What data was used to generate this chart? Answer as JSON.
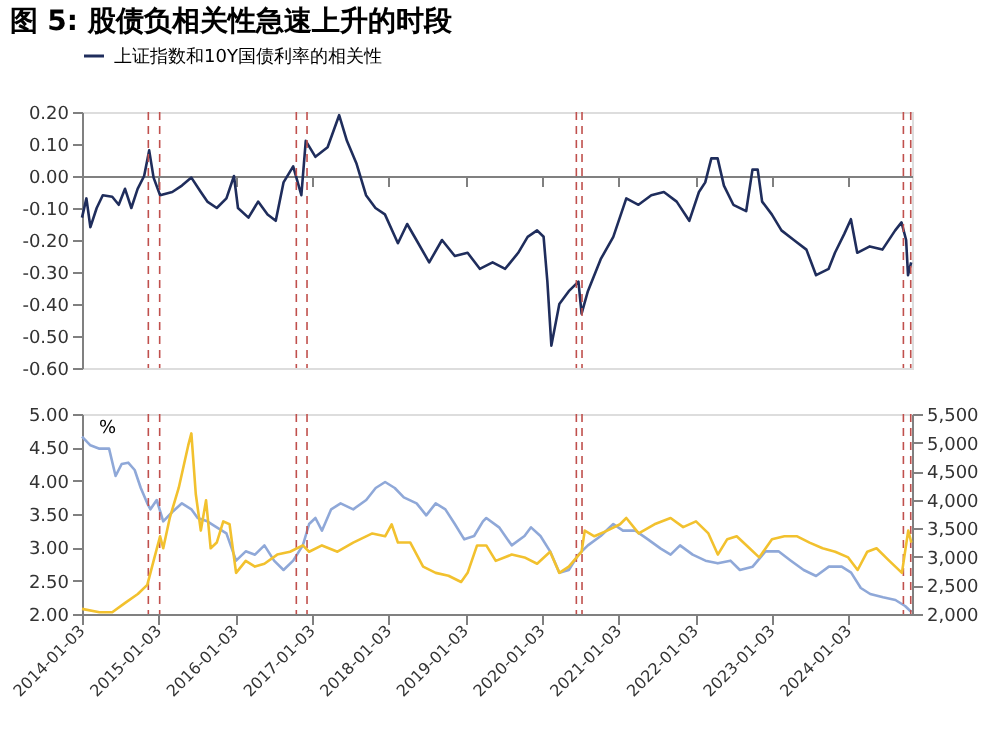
{
  "chart_data": [
    {
      "type": "line",
      "title": "图 5: 股债负相关性急速上升的时段",
      "legend": "top",
      "tick_labels": "y",
      "grid": false,
      "xlim": [
        "2014-01-03",
        "2024-10-31"
      ],
      "xticks": [
        {
          "value": "2014-01-03",
          "label": null
        },
        {
          "value": "2015-01-03",
          "label": null
        },
        {
          "value": "2016-01-03",
          "label": null
        },
        {
          "value": "2017-01-03",
          "label": null
        },
        {
          "value": "2018-01-03",
          "label": null
        },
        {
          "value": "2019-01-03",
          "label": null
        },
        {
          "value": "2020-01-03",
          "label": null
        },
        {
          "value": "2021-01-03",
          "label": null
        },
        {
          "value": "2022-01-03",
          "label": null
        },
        {
          "value": "2023-01-03",
          "label": null
        },
        {
          "value": "2024-01-03",
          "label": null
        }
      ],
      "ylim": [
        -0.6,
        0.2
      ],
      "yticks": [
        {
          "value": -0.6,
          "label": "-0.60"
        },
        {
          "value": -0.5,
          "label": "-0.50"
        },
        {
          "value": -0.4,
          "label": "-0.40"
        },
        {
          "value": -0.3,
          "label": "-0.30"
        },
        {
          "value": -0.2,
          "label": "-0.20"
        },
        {
          "value": -0.1,
          "label": "-0.10"
        },
        {
          "value": 0,
          "label": "0.00"
        },
        {
          "value": 0.1,
          "label": "0.10"
        },
        {
          "value": 0.2,
          "label": "0.20"
        }
      ],
      "series": [
        {
          "name": "上证指数和10Y国债利率的相关性",
          "color": "#1f2d5c",
          "x": [
            "2014-01-03",
            "2014-01-24",
            "2014-02-12",
            "2014-03-14",
            "2014-04-12",
            "2014-05-27",
            "2014-06-27",
            "2014-07-27",
            "2014-08-26",
            "2014-09-25",
            "2014-10-26",
            "2014-11-19",
            "2014-12-10",
            "2015-01-10",
            "2015-03-09",
            "2015-04-24",
            "2015-06-08",
            "2015-07-23",
            "2015-08-23",
            "2015-10-07",
            "2015-11-22",
            "2015-12-28",
            "2016-01-16",
            "2016-03-06",
            "2016-04-21",
            "2016-06-05",
            "2016-07-14",
            "2016-08-20",
            "2016-10-05",
            "2016-11-13",
            "2016-12-04",
            "2017-01-19",
            "2017-03-18",
            "2017-05-12",
            "2017-06-18",
            "2017-08-02",
            "2017-09-17",
            "2017-11-01",
            "2017-12-16",
            "2018-02-16",
            "2018-04-01",
            "2018-05-15",
            "2018-07-15",
            "2018-09-14",
            "2018-11-14",
            "2019-01-14",
            "2019-03-13",
            "2019-05-13",
            "2019-07-12",
            "2019-09-12",
            "2019-10-27",
            "2019-12-11",
            "2020-01-11",
            "2020-01-29",
            "2020-02-17",
            "2020-03-26",
            "2020-05-10",
            "2020-06-25",
            "2020-07-10",
            "2020-08-09",
            "2020-10-09",
            "2020-12-08",
            "2021-02-08",
            "2021-04-07",
            "2021-06-07",
            "2021-08-06",
            "2021-10-06",
            "2021-12-05",
            "2022-01-20",
            "2022-02-19",
            "2022-03-20",
            "2022-04-19",
            "2022-05-19",
            "2022-07-03",
            "2022-09-02",
            "2022-10-02",
            "2022-10-27",
            "2022-11-17",
            "2023-01-02",
            "2023-02-17",
            "2023-04-17",
            "2023-06-16",
            "2023-08-01",
            "2023-09-30",
            "2023-10-30",
            "2023-12-14",
            "2024-01-14",
            "2024-02-13",
            "2024-04-13",
            "2024-06-12",
            "2024-08-12",
            "2024-09-11",
            "2024-10-03",
            "2024-10-12",
            "2024-10-27"
          ],
          "values": [
            -0.13,
            -0.07,
            -0.16,
            -0.1,
            -0.06,
            -0.065,
            -0.09,
            -0.04,
            -0.1,
            -0.04,
            0.0,
            0.08,
            -0.005,
            -0.06,
            -0.05,
            -0.03,
            -0.005,
            -0.05,
            -0.08,
            -0.1,
            -0.07,
            0.0,
            -0.1,
            -0.13,
            -0.08,
            -0.12,
            -0.14,
            -0.02,
            0.03,
            -0.06,
            0.11,
            0.06,
            0.09,
            0.19,
            0.11,
            0.04,
            -0.06,
            -0.1,
            -0.12,
            -0.21,
            -0.15,
            -0.2,
            -0.27,
            -0.2,
            -0.25,
            -0.24,
            -0.29,
            -0.27,
            -0.29,
            -0.24,
            -0.19,
            -0.17,
            -0.19,
            -0.33,
            -0.53,
            -0.4,
            -0.36,
            -0.33,
            -0.43,
            -0.36,
            -0.26,
            -0.19,
            -0.07,
            -0.09,
            -0.06,
            -0.05,
            -0.08,
            -0.14,
            -0.05,
            -0.02,
            0.055,
            0.055,
            -0.03,
            -0.09,
            -0.11,
            0.02,
            0.02,
            -0.08,
            -0.12,
            -0.17,
            -0.2,
            -0.23,
            -0.31,
            -0.29,
            -0.24,
            -0.18,
            -0.135,
            -0.24,
            -0.22,
            -0.23,
            -0.17,
            -0.145,
            -0.2,
            -0.31,
            -0.27
          ]
        }
      ],
      "ref_lines": [
        {
          "axis": "x",
          "value": "2014-11-15",
          "color": "#c0504d",
          "line_style": "dashed"
        },
        {
          "axis": "x",
          "value": "2015-01-08",
          "color": "#c0504d",
          "line_style": "dashed"
        },
        {
          "axis": "x",
          "value": "2016-10-20",
          "color": "#c0504d",
          "line_style": "dashed"
        },
        {
          "axis": "x",
          "value": "2016-12-10",
          "color": "#c0504d",
          "line_style": "dashed"
        },
        {
          "axis": "x",
          "value": "2020-06-15",
          "color": "#c0504d",
          "line_style": "dashed"
        },
        {
          "axis": "x",
          "value": "2020-07-12",
          "color": "#c0504d",
          "line_style": "dashed"
        },
        {
          "axis": "x",
          "value": "2024-09-20",
          "color": "#c0504d",
          "line_style": "dashed"
        },
        {
          "axis": "x",
          "value": "2024-10-25",
          "color": "#c0504d",
          "line_style": "dashed"
        }
      ]
    },
    {
      "type": "line",
      "ylabel": "%",
      "grid": false,
      "xlim": [
        "2014-01-03",
        "2024-10-31"
      ],
      "xticks": [
        {
          "value": "2014-01-03",
          "label": "2014-01-03"
        },
        {
          "value": "2015-01-03",
          "label": "2015-01-03"
        },
        {
          "value": "2016-01-03",
          "label": "2016-01-03"
        },
        {
          "value": "2017-01-03",
          "label": "2017-01-03"
        },
        {
          "value": "2018-01-03",
          "label": "2018-01-03"
        },
        {
          "value": "2019-01-03",
          "label": "2019-01-03"
        },
        {
          "value": "2020-01-03",
          "label": "2020-01-03"
        },
        {
          "value": "2021-01-03",
          "label": "2021-01-03"
        },
        {
          "value": "2022-01-03",
          "label": "2022-01-03"
        },
        {
          "value": "2023-01-03",
          "label": "2023-01-03"
        },
        {
          "value": "2024-01-03",
          "label": "2024-01-03"
        }
      ],
      "ylim": [
        2,
        5
      ],
      "yticks": [
        {
          "value": 2,
          "label": "2.00"
        },
        {
          "value": 2.5,
          "label": "2.50"
        },
        {
          "value": 3,
          "label": "3.00"
        },
        {
          "value": 3.5,
          "label": "3.50"
        },
        {
          "value": 4,
          "label": "4.00"
        },
        {
          "value": 4.5,
          "label": "4.50"
        },
        {
          "value": 5,
          "label": "5.00"
        }
      ],
      "y2lim": [
        2000,
        5500
      ],
      "y2ticks": [
        {
          "value": 2000,
          "label": "2,000"
        },
        {
          "value": 2500,
          "label": "2,500"
        },
        {
          "value": 3000,
          "label": "3,000"
        },
        {
          "value": 3500,
          "label": "3,500"
        },
        {
          "value": 4000,
          "label": "4,000"
        },
        {
          "value": 4500,
          "label": "4,500"
        },
        {
          "value": 5000,
          "label": "5,000"
        },
        {
          "value": 5500,
          "label": "5,500"
        }
      ],
      "series": [
        {
          "color": "#8fa8d8",
          "x": [
            "2014-01-03",
            "2014-02-12",
            "2014-03-27",
            "2014-05-12",
            "2014-06-12",
            "2014-07-11",
            "2014-08-11",
            "2014-09-11",
            "2014-10-10",
            "2014-11-10",
            "2014-11-25",
            "2014-12-25",
            "2015-01-25",
            "2015-03-09",
            "2015-04-24",
            "2015-06-08",
            "2015-07-08",
            "2015-08-23",
            "2015-10-07",
            "2015-11-22",
            "2016-01-07",
            "2016-02-22",
            "2016-04-06",
            "2016-05-21",
            "2016-07-06",
            "2016-08-20",
            "2016-10-05",
            "2016-11-20",
            "2016-12-20",
            "2017-01-19",
            "2017-02-19",
            "2017-04-04",
            "2017-05-19",
            "2017-07-18",
            "2017-09-18",
            "2017-11-02",
            "2017-12-17",
            "2018-02-01",
            "2018-03-16",
            "2018-05-16",
            "2018-07-01",
            "2018-08-15",
            "2018-09-30",
            "2018-11-14",
            "2018-12-29",
            "2019-02-14",
            "2019-03-28",
            "2019-04-13",
            "2019-06-13",
            "2019-08-12",
            "2019-10-12",
            "2019-11-12",
            "2019-12-27",
            "2020-02-11",
            "2020-03-26",
            "2020-05-10",
            "2020-06-25",
            "2020-08-09",
            "2020-10-09",
            "2020-12-08",
            "2021-01-23",
            "2021-03-23",
            "2021-05-22",
            "2021-07-22",
            "2021-09-07",
            "2021-10-22",
            "2021-12-21",
            "2022-02-20",
            "2022-04-20",
            "2022-06-19",
            "2022-08-03",
            "2022-10-03",
            "2022-12-03",
            "2023-02-03",
            "2023-04-03",
            "2023-06-03",
            "2023-08-01",
            "2023-10-01",
            "2023-12-01",
            "2024-01-15",
            "2024-03-01",
            "2024-04-15",
            "2024-06-15",
            "2024-08-13",
            "2024-09-28",
            "2024-10-28"
          ],
          "values": [
            4.66,
            4.53,
            4.48,
            4.48,
            4.07,
            4.25,
            4.27,
            4.16,
            3.89,
            3.66,
            3.57,
            3.71,
            3.39,
            3.53,
            3.66,
            3.57,
            3.44,
            3.39,
            3.3,
            3.21,
            2.8,
            2.94,
            2.89,
            3.03,
            2.8,
            2.66,
            2.8,
            3.03,
            3.35,
            3.44,
            3.25,
            3.57,
            3.66,
            3.57,
            3.71,
            3.89,
            3.98,
            3.89,
            3.75,
            3.66,
            3.48,
            3.66,
            3.57,
            3.35,
            3.12,
            3.17,
            3.39,
            3.44,
            3.3,
            3.03,
            3.17,
            3.3,
            3.17,
            2.94,
            2.62,
            2.66,
            2.89,
            3.03,
            3.17,
            3.35,
            3.25,
            3.25,
            3.12,
            2.98,
            2.89,
            3.03,
            2.89,
            2.8,
            2.76,
            2.8,
            2.66,
            2.71,
            2.94,
            2.94,
            2.8,
            2.66,
            2.57,
            2.71,
            2.71,
            2.62,
            2.39,
            2.3,
            2.25,
            2.21,
            2.12,
            2.03
          ]
        },
        {
          "color": "#f2c12e",
          "axis": "y2",
          "x": [
            "2014-01-03",
            "2014-03-27",
            "2014-05-27",
            "2014-07-26",
            "2014-09-26",
            "2014-11-10",
            "2014-12-10",
            "2015-01-10",
            "2015-01-25",
            "2015-02-25",
            "2015-04-09",
            "2015-05-24",
            "2015-06-08",
            "2015-06-29",
            "2015-07-23",
            "2015-08-17",
            "2015-09-08",
            "2015-10-07",
            "2015-11-07",
            "2015-12-07",
            "2016-01-07",
            "2016-02-22",
            "2016-04-06",
            "2016-05-21",
            "2016-07-21",
            "2016-09-20",
            "2016-11-20",
            "2016-12-20",
            "2017-02-19",
            "2017-05-04",
            "2017-07-18",
            "2017-10-17",
            "2017-12-17",
            "2018-01-17",
            "2018-02-16",
            "2018-04-16",
            "2018-06-16",
            "2018-08-15",
            "2018-10-15",
            "2018-12-14",
            "2019-01-14",
            "2019-02-28",
            "2019-04-13",
            "2019-05-28",
            "2019-08-12",
            "2019-10-12",
            "2019-12-11",
            "2020-02-11",
            "2020-03-26",
            "2020-05-10",
            "2020-07-10",
            "2020-07-25",
            "2020-09-09",
            "2020-11-09",
            "2021-01-09",
            "2021-02-08",
            "2021-04-08",
            "2021-06-22",
            "2021-09-07",
            "2021-11-06",
            "2022-01-06",
            "2022-03-06",
            "2022-04-20",
            "2022-06-04",
            "2022-07-19",
            "2022-09-18",
            "2022-11-03",
            "2023-01-03",
            "2023-03-03",
            "2023-05-03",
            "2023-07-01",
            "2023-09-01",
            "2023-10-31",
            "2024-01-01",
            "2024-02-15",
            "2024-04-01",
            "2024-05-15",
            "2024-07-15",
            "2024-09-13",
            "2024-10-13",
            "2024-10-28"
          ],
          "values": [
            2090,
            2030,
            2030,
            2190,
            2350,
            2510,
            2930,
            3360,
            3150,
            3680,
            4210,
            4950,
            5160,
            4100,
            3460,
            3990,
            3150,
            3250,
            3620,
            3570,
            2720,
            2930,
            2830,
            2880,
            3040,
            3090,
            3200,
            3090,
            3200,
            3090,
            3250,
            3410,
            3360,
            3570,
            3250,
            3250,
            2830,
            2720,
            2670,
            2560,
            2720,
            3200,
            3200,
            2930,
            3040,
            2990,
            2880,
            3090,
            2720,
            2830,
            3090,
            3460,
            3360,
            3460,
            3570,
            3680,
            3410,
            3570,
            3680,
            3520,
            3620,
            3410,
            3040,
            3310,
            3360,
            3150,
            2990,
            3310,
            3360,
            3360,
            3250,
            3150,
            3090,
            2990,
            2770,
            3090,
            3150,
            2930,
            2720,
            3460,
            3250
          ]
        }
      ],
      "ref_lines": [
        {
          "axis": "x",
          "value": "2014-11-15",
          "color": "#c0504d",
          "line_style": "dashed"
        },
        {
          "axis": "x",
          "value": "2015-01-08",
          "color": "#c0504d",
          "line_style": "dashed"
        },
        {
          "axis": "x",
          "value": "2016-10-20",
          "color": "#c0504d",
          "line_style": "dashed"
        },
        {
          "axis": "x",
          "value": "2016-12-10",
          "color": "#c0504d",
          "line_style": "dashed"
        },
        {
          "axis": "x",
          "value": "2020-06-15",
          "color": "#c0504d",
          "line_style": "dashed"
        },
        {
          "axis": "x",
          "value": "2020-07-12",
          "color": "#c0504d",
          "line_style": "dashed"
        },
        {
          "axis": "x",
          "value": "2024-09-20",
          "color": "#c0504d",
          "line_style": "dashed"
        },
        {
          "axis": "x",
          "value": "2024-10-25",
          "color": "#c0504d",
          "line_style": "dashed"
        }
      ]
    }
  ]
}
